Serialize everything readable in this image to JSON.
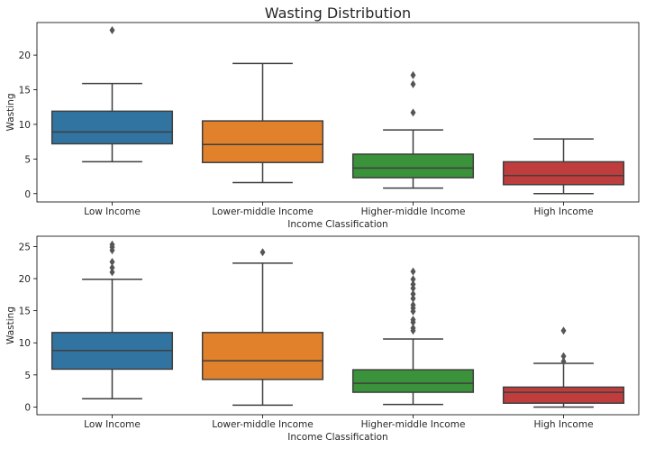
{
  "title": "Wasting Distribution",
  "chart_data": [
    {
      "type": "box",
      "xlabel": "Income Classification",
      "ylabel": "Wasting",
      "ylim": [
        -1.2,
        24.7
      ],
      "yticks": [
        0,
        5,
        10,
        15,
        20
      ],
      "categories": [
        "Low Income",
        "Lower-middle Income",
        "Higher-middle Income",
        "High Income"
      ],
      "boxes": [
        {
          "whisker_low": 4.6,
          "q1": 7.2,
          "median": 8.9,
          "q3": 11.9,
          "whisker_high": 15.9,
          "outliers": [
            23.6
          ]
        },
        {
          "whisker_low": 1.6,
          "q1": 4.5,
          "median": 7.1,
          "q3": 10.5,
          "whisker_high": 18.8,
          "outliers": []
        },
        {
          "whisker_low": 0.8,
          "q1": 2.3,
          "median": 3.7,
          "q3": 5.7,
          "whisker_high": 9.2,
          "outliers": [
            11.7,
            15.8,
            17.1
          ]
        },
        {
          "whisker_low": 0.0,
          "q1": 1.3,
          "median": 2.6,
          "q3": 4.6,
          "whisker_high": 7.9,
          "outliers": []
        }
      ],
      "colors": [
        "#3274a1",
        "#e1812c",
        "#3a923a",
        "#c03d3e"
      ],
      "grid": false,
      "legend": "none"
    },
    {
      "type": "box",
      "xlabel": "Income Classification",
      "ylabel": "Wasting",
      "ylim": [
        -1.2,
        26.6
      ],
      "yticks": [
        0,
        5,
        10,
        15,
        20,
        25
      ],
      "categories": [
        "Low Income",
        "Lower-middle Income",
        "Higher-middle Income",
        "High Income"
      ],
      "boxes": [
        {
          "whisker_low": 1.3,
          "q1": 5.9,
          "median": 8.8,
          "q3": 11.6,
          "whisker_high": 19.9,
          "outliers": [
            21.0,
            21.7,
            22.6,
            24.4,
            24.9,
            25.3
          ]
        },
        {
          "whisker_low": 0.3,
          "q1": 4.3,
          "median": 7.2,
          "q3": 11.6,
          "whisker_high": 22.4,
          "outliers": [
            24.1
          ]
        },
        {
          "whisker_low": 0.4,
          "q1": 2.3,
          "median": 3.7,
          "q3": 5.8,
          "whisker_high": 10.6,
          "outliers": [
            11.9,
            12.3,
            13.2,
            13.6,
            14.9,
            15.4,
            15.9,
            16.9,
            17.6,
            18.5,
            19.1,
            19.9,
            21.1
          ]
        },
        {
          "whisker_low": 0.0,
          "q1": 0.6,
          "median": 2.3,
          "q3": 3.1,
          "whisker_high": 6.8,
          "outliers": [
            7.1,
            7.9,
            11.9
          ]
        }
      ],
      "colors": [
        "#3274a1",
        "#e1812c",
        "#3a923a",
        "#c03d3e"
      ],
      "grid": false,
      "legend": "none"
    }
  ]
}
